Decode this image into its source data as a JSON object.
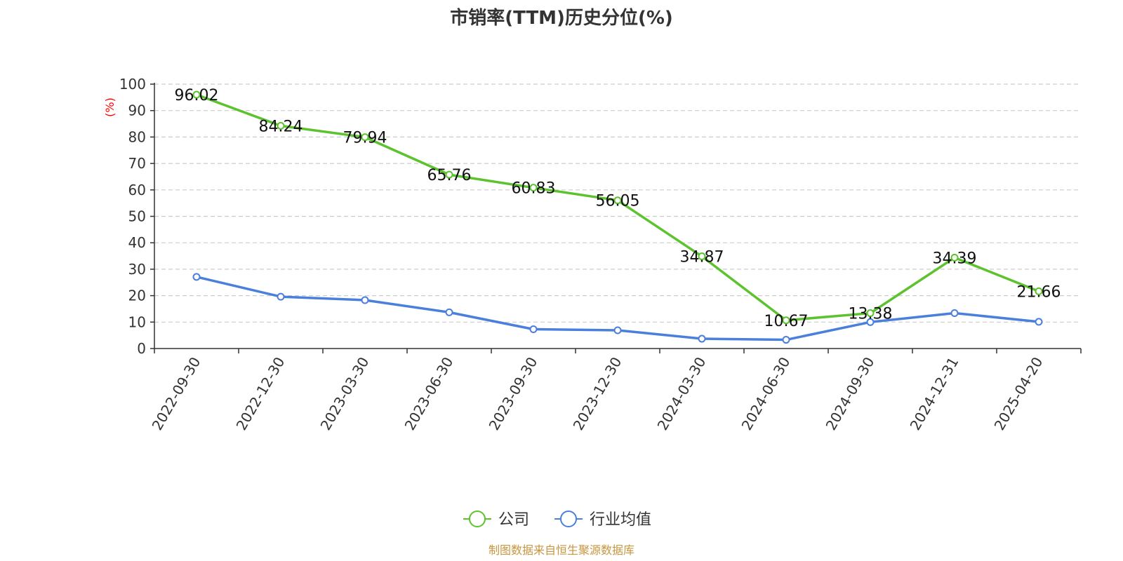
{
  "chart_data": {
    "type": "line",
    "title": "市销率(TTM)历史分位(%)",
    "ylabel": "(%)",
    "xlabel": "",
    "ylim": [
      0,
      100
    ],
    "yticks": [
      0,
      10,
      20,
      30,
      40,
      50,
      60,
      70,
      80,
      90,
      100
    ],
    "grid": true,
    "legend_position": "bottom-center",
    "categories": [
      "2022-09-30",
      "2022-12-30",
      "2023-03-30",
      "2023-06-30",
      "2023-09-30",
      "2023-12-30",
      "2024-03-30",
      "2024-06-30",
      "2024-09-30",
      "2024-12-31",
      "2025-04-20"
    ],
    "series": [
      {
        "name": "公司",
        "color": "#5cc22d",
        "values": [
          96.02,
          84.24,
          79.94,
          65.76,
          60.83,
          56.05,
          34.87,
          10.67,
          13.38,
          34.39,
          21.66
        ],
        "labels": [
          "96.02",
          "84.24",
          "79.94",
          "65.76",
          "60.83",
          "56.05",
          "34.87",
          "10.67",
          "13.38",
          "34.39",
          "21.66"
        ]
      },
      {
        "name": "行业均值",
        "color": "#4a7fdc",
        "values": [
          27.1,
          19.6,
          18.3,
          13.7,
          7.3,
          6.9,
          3.7,
          3.3,
          10.0,
          13.4,
          10.1
        ]
      }
    ],
    "source": "制图数据来自恒生聚源数据库"
  }
}
